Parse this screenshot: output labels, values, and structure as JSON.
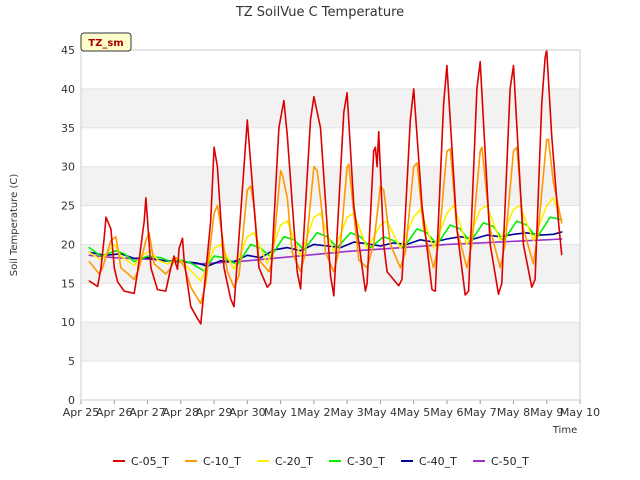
{
  "chart_data": {
    "type": "line",
    "title": "TZ SoilVue C Temperature",
    "xlabel": "Time",
    "ylabel": "Soil Temperature (C)",
    "badge": "TZ_sm",
    "xlim": [
      0,
      15
    ],
    "ylim": [
      0,
      45
    ],
    "x_ticks": [
      {
        "value": 0,
        "label": "Apr 25"
      },
      {
        "value": 1,
        "label": "Apr 26"
      },
      {
        "value": 2,
        "label": "Apr 27"
      },
      {
        "value": 3,
        "label": "Apr 28"
      },
      {
        "value": 4,
        "label": "Apr 29"
      },
      {
        "value": 5,
        "label": "Apr 30"
      },
      {
        "value": 6,
        "label": "May 1"
      },
      {
        "value": 7,
        "label": "May 2"
      },
      {
        "value": 8,
        "label": "May 3"
      },
      {
        "value": 9,
        "label": "May 4"
      },
      {
        "value": 10,
        "label": "May 5"
      },
      {
        "value": 11,
        "label": "May 6"
      },
      {
        "value": 12,
        "label": "May 7"
      },
      {
        "value": 13,
        "label": "May 8"
      },
      {
        "value": 14,
        "label": "May 9"
      },
      {
        "value": 15,
        "label": "May 10"
      }
    ],
    "y_ticks": [
      0,
      5,
      10,
      15,
      20,
      25,
      30,
      35,
      40,
      45
    ],
    "grid_bands": true,
    "legend_position": "bottom",
    "series": [
      {
        "name": "C-05_T",
        "color": "#dd0000",
        "x": [
          0.25,
          0.5,
          0.6,
          0.7,
          0.75,
          0.85,
          0.9,
          1.0,
          1.1,
          1.3,
          1.6,
          1.7,
          1.9,
          1.95,
          2.1,
          2.3,
          2.55,
          2.7,
          2.8,
          2.85,
          2.9,
          2.95,
          3.05,
          3.1,
          3.3,
          3.5,
          3.6,
          3.9,
          4.0,
          4.1,
          4.3,
          4.5,
          4.6,
          4.9,
          5.0,
          5.2,
          5.35,
          5.6,
          5.7,
          5.95,
          6.1,
          6.2,
          6.5,
          6.6,
          6.9,
          7.0,
          7.2,
          7.5,
          7.6,
          7.9,
          8.0,
          8.2,
          8.55,
          8.6,
          8.8,
          8.85,
          8.9,
          8.95,
          9.1,
          9.2,
          9.55,
          9.65,
          9.9,
          10.0,
          10.25,
          10.55,
          10.65,
          10.9,
          11.0,
          11.3,
          11.55,
          11.65,
          11.9,
          12.0,
          12.3,
          12.55,
          12.65,
          12.9,
          13.0,
          13.3,
          13.55,
          13.65,
          13.85,
          13.95,
          14.0,
          14.15,
          14.35,
          14.45
        ],
        "y": [
          15.3,
          14.6,
          17.0,
          21.0,
          23.5,
          22.5,
          22.0,
          17.0,
          15.2,
          14.0,
          13.7,
          16.5,
          23.0,
          26.0,
          17.0,
          14.2,
          14.0,
          17.0,
          18.5,
          17.5,
          16.8,
          19.5,
          20.8,
          18.0,
          12.0,
          10.5,
          9.8,
          23.0,
          32.5,
          30.0,
          17.0,
          13.0,
          12.0,
          30.0,
          36.0,
          25.0,
          17.0,
          14.5,
          15.0,
          35.0,
          38.5,
          34.0,
          16.5,
          14.3,
          36.0,
          39.0,
          35.0,
          16.0,
          13.4,
          37.0,
          39.5,
          25.0,
          14.0,
          15.0,
          32.0,
          32.5,
          30.0,
          34.5,
          20.0,
          16.5,
          14.7,
          15.5,
          36.0,
          40.0,
          25.0,
          14.2,
          14.0,
          38.0,
          43.0,
          22.0,
          13.5,
          14.0,
          40.0,
          43.5,
          20.0,
          13.6,
          15.0,
          40.0,
          43.0,
          20.0,
          14.5,
          15.5,
          38.0,
          44.0,
          45.0,
          34.0,
          23.0,
          18.7
        ]
      },
      {
        "name": "C-10_T",
        "color": "#ff9900",
        "x": [
          0.25,
          0.55,
          0.65,
          0.9,
          1.05,
          1.2,
          1.6,
          1.75,
          1.95,
          2.05,
          2.2,
          2.55,
          2.7,
          2.85,
          2.95,
          3.1,
          3.3,
          3.6,
          3.75,
          4.0,
          4.1,
          4.2,
          4.4,
          4.6,
          4.75,
          5.0,
          5.1,
          5.2,
          5.35,
          5.65,
          5.75,
          6.0,
          6.05,
          6.2,
          6.35,
          6.6,
          6.75,
          7.0,
          7.1,
          7.25,
          7.35,
          7.6,
          7.8,
          8.0,
          8.05,
          8.2,
          8.35,
          8.6,
          8.8,
          9.0,
          9.1,
          9.3,
          9.6,
          9.75,
          10.0,
          10.1,
          10.3,
          10.6,
          10.75,
          11.0,
          11.1,
          11.3,
          11.6,
          11.75,
          12.0,
          12.05,
          12.3,
          12.6,
          12.75,
          13.0,
          13.1,
          13.3,
          13.6,
          13.75,
          14.0,
          14.05,
          14.2,
          14.45
        ],
        "y": [
          17.8,
          16.2,
          17.0,
          20.5,
          21.0,
          17.0,
          15.5,
          17.0,
          20.5,
          21.5,
          17.5,
          16.2,
          17.0,
          18.3,
          18.0,
          17.2,
          14.5,
          12.4,
          15.0,
          24.0,
          25.0,
          22.5,
          16.5,
          14.5,
          16.0,
          27.0,
          27.5,
          25.0,
          18.0,
          16.5,
          18.0,
          29.5,
          29.0,
          26.0,
          19.0,
          16.5,
          19.0,
          30.0,
          29.5,
          24.0,
          19.0,
          16.5,
          20.0,
          30.0,
          30.3,
          24.0,
          18.0,
          17.0,
          20.0,
          27.5,
          27.0,
          20.0,
          17.0,
          19.0,
          30.0,
          30.5,
          22.0,
          17.0,
          20.0,
          32.0,
          32.3,
          22.0,
          17.0,
          20.0,
          32.0,
          32.5,
          22.0,
          17.0,
          20.0,
          32.0,
          32.5,
          22.0,
          17.5,
          22.0,
          33.5,
          33.5,
          28.0,
          22.8
        ]
      },
      {
        "name": "C-20_T",
        "color": "#ffee00",
        "x": [
          0.25,
          0.6,
          1.0,
          1.2,
          1.6,
          1.8,
          2.1,
          2.3,
          2.6,
          2.9,
          3.1,
          3.6,
          4.0,
          4.2,
          4.6,
          5.0,
          5.2,
          5.6,
          6.0,
          6.2,
          6.6,
          7.0,
          7.2,
          7.6,
          8.0,
          8.2,
          8.6,
          9.0,
          9.2,
          9.6,
          10.0,
          10.2,
          10.6,
          11.0,
          11.2,
          11.6,
          12.0,
          12.2,
          12.6,
          13.0,
          13.2,
          13.6,
          14.0,
          14.2,
          14.45
        ],
        "y": [
          19.0,
          18.0,
          20.0,
          18.5,
          17.3,
          18.5,
          19.2,
          18.0,
          17.5,
          18.2,
          17.5,
          15.3,
          19.5,
          20.0,
          16.8,
          21.0,
          21.5,
          17.5,
          22.5,
          23.0,
          18.5,
          23.5,
          24.0,
          19.0,
          23.5,
          24.0,
          19.5,
          22.5,
          23.0,
          19.5,
          23.5,
          24.5,
          19.5,
          24.0,
          25.0,
          20.0,
          24.5,
          25.0,
          20.5,
          24.5,
          25.0,
          20.5,
          25.0,
          26.0,
          23.0
        ]
      },
      {
        "name": "C-30_T",
        "color": "#00ee00",
        "x": [
          0.25,
          0.6,
          1.05,
          1.3,
          1.6,
          2.0,
          2.4,
          2.7,
          3.0,
          3.3,
          3.7,
          4.0,
          4.3,
          4.7,
          5.1,
          5.4,
          5.7,
          6.1,
          6.4,
          6.7,
          7.1,
          7.4,
          7.7,
          8.1,
          8.4,
          8.7,
          9.1,
          9.4,
          9.7,
          10.1,
          10.4,
          10.7,
          11.1,
          11.4,
          11.7,
          12.1,
          12.4,
          12.7,
          13.1,
          13.4,
          13.7,
          14.1,
          14.45
        ],
        "y": [
          19.6,
          18.5,
          19.2,
          18.8,
          17.8,
          18.5,
          18.3,
          17.8,
          18.0,
          17.6,
          16.6,
          18.5,
          18.3,
          17.4,
          20.0,
          19.5,
          18.4,
          21.0,
          20.6,
          19.3,
          21.5,
          21.0,
          19.6,
          21.5,
          21.0,
          19.6,
          21.0,
          20.5,
          19.6,
          22.0,
          21.5,
          20.0,
          22.5,
          22.0,
          20.3,
          22.8,
          22.3,
          20.5,
          23.0,
          22.5,
          20.8,
          23.5,
          23.2
        ]
      },
      {
        "name": "C-40_T",
        "color": "#000099",
        "x": [
          0.25,
          0.7,
          1.2,
          1.6,
          2.0,
          2.5,
          3.0,
          3.5,
          3.8,
          4.2,
          4.6,
          5.0,
          5.4,
          5.8,
          6.2,
          6.6,
          7.0,
          7.4,
          7.8,
          8.2,
          8.6,
          9.0,
          9.4,
          9.8,
          10.2,
          10.6,
          11.0,
          11.4,
          11.8,
          12.2,
          12.6,
          13.0,
          13.4,
          13.8,
          14.2,
          14.45
        ],
        "y": [
          19.0,
          18.6,
          18.8,
          18.2,
          18.3,
          17.9,
          17.8,
          17.6,
          17.2,
          17.9,
          17.8,
          18.6,
          18.3,
          19.3,
          19.6,
          19.2,
          20.0,
          19.8,
          19.6,
          20.3,
          20.1,
          19.8,
          20.2,
          20.0,
          20.6,
          20.3,
          20.7,
          21.0,
          20.7,
          21.2,
          21.0,
          21.3,
          21.5,
          21.2,
          21.3,
          21.6
        ]
      },
      {
        "name": "C-50_T",
        "color": "#9933cc",
        "x": [
          0.25,
          1.0,
          2.0,
          3.0,
          3.5,
          4.0,
          5.0,
          6.0,
          7.0,
          8.0,
          9.0,
          10.0,
          11.0,
          12.0,
          13.0,
          14.0,
          14.45
        ],
        "y": [
          18.6,
          18.3,
          18.1,
          17.8,
          17.5,
          17.6,
          17.9,
          18.3,
          18.7,
          19.1,
          19.4,
          19.7,
          20.0,
          20.2,
          20.4,
          20.6,
          20.7
        ]
      }
    ]
  }
}
